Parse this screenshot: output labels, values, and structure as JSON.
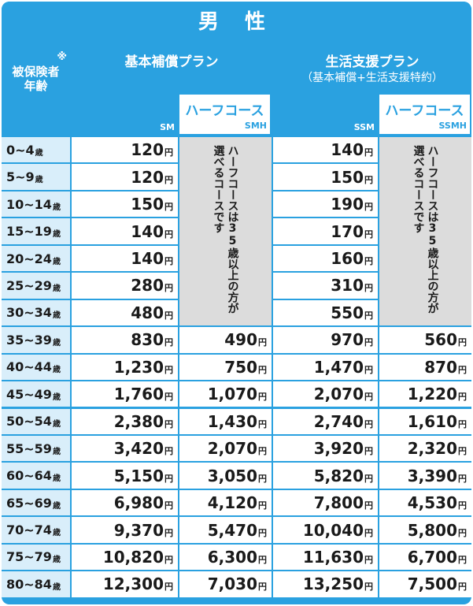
{
  "title": "男 性",
  "header": {
    "age_mark": "※",
    "age_label_1": "被保険者",
    "age_label_2": "年齢",
    "basic_plan": "基本補償プラン",
    "life_plan": "生活支援プラン",
    "life_plan_sub": "（基本補償+生活支援特約）",
    "half_course": "ハーフコース",
    "code_sm": "SM",
    "code_smh": "SMH",
    "code_ssm": "SSM",
    "code_ssmh": "SSMH"
  },
  "notes": {
    "half_note_1": "ハーフコースは35歳以上の方が",
    "half_note_2": "選べるコースです"
  },
  "units": {
    "age_suffix": "歳",
    "yen": "円"
  },
  "rows": [
    {
      "age": "0~4",
      "sm": "120",
      "smh": "",
      "ssm": "140",
      "ssmh": ""
    },
    {
      "age": "5~9",
      "sm": "120",
      "smh": "",
      "ssm": "150",
      "ssmh": ""
    },
    {
      "age": "10~14",
      "sm": "150",
      "smh": "",
      "ssm": "190",
      "ssmh": ""
    },
    {
      "age": "15~19",
      "sm": "140",
      "smh": "",
      "ssm": "170",
      "ssmh": ""
    },
    {
      "age": "20~24",
      "sm": "140",
      "smh": "",
      "ssm": "160",
      "ssmh": ""
    },
    {
      "age": "25~29",
      "sm": "280",
      "smh": "",
      "ssm": "310",
      "ssmh": ""
    },
    {
      "age": "30~34",
      "sm": "480",
      "smh": "",
      "ssm": "550",
      "ssmh": ""
    },
    {
      "age": "35~39",
      "sm": "830",
      "smh": "490",
      "ssm": "970",
      "ssmh": "560"
    },
    {
      "age": "40~44",
      "sm": "1,230",
      "smh": "750",
      "ssm": "1,470",
      "ssmh": "870"
    },
    {
      "age": "45~49",
      "sm": "1,760",
      "smh": "1,070",
      "ssm": "2,070",
      "ssmh": "1,220"
    },
    {
      "age": "50~54",
      "sm": "2,380",
      "smh": "1,430",
      "ssm": "2,740",
      "ssmh": "1,610"
    },
    {
      "age": "55~59",
      "sm": "3,420",
      "smh": "2,070",
      "ssm": "3,920",
      "ssmh": "2,320"
    },
    {
      "age": "60~64",
      "sm": "5,150",
      "smh": "3,050",
      "ssm": "5,820",
      "ssmh": "3,390"
    },
    {
      "age": "65~69",
      "sm": "6,980",
      "smh": "4,120",
      "ssm": "7,800",
      "ssmh": "4,530"
    },
    {
      "age": "70~74",
      "sm": "9,370",
      "smh": "5,470",
      "ssm": "10,040",
      "ssmh": "5,800"
    },
    {
      "age": "75~79",
      "sm": "10,820",
      "smh": "6,300",
      "ssm": "11,630",
      "ssmh": "6,700"
    },
    {
      "age": "80~84",
      "sm": "12,300",
      "smh": "7,030",
      "ssm": "13,250",
      "ssmh": "7,500"
    }
  ]
}
